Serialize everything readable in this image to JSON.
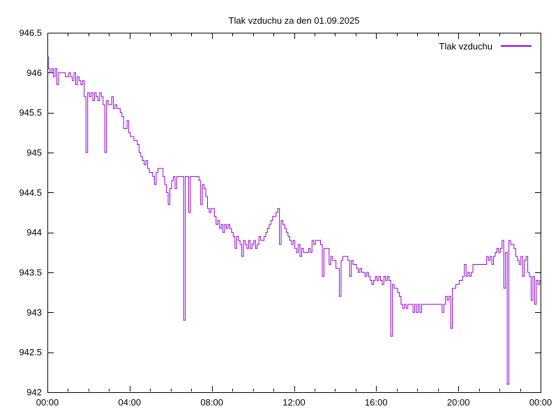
{
  "title": "Tlak vzduchu za den 01.09.2025",
  "legend": {
    "label": "Tlak vzduchu"
  },
  "colors": {
    "line": "#9400d3",
    "axis": "#000000",
    "background": "#ffffff",
    "text": "#000000"
  },
  "chart_data": {
    "type": "line",
    "title": "Tlak vzduchu za den 01.09.2025",
    "xlabel": "",
    "ylabel": "",
    "x_unit": "time of day (HH:MM)",
    "y_unit": "hPa",
    "xlim_hours": [
      0,
      24
    ],
    "ylim": [
      942,
      946.5
    ],
    "x_ticks": [
      "00:00",
      "04:00",
      "08:00",
      "12:00",
      "16:00",
      "20:00",
      "00:00"
    ],
    "x_tick_hours": [
      0,
      4,
      8,
      12,
      16,
      20,
      24
    ],
    "x_minor_tick_every_hours": 1,
    "y_ticks": [
      942,
      942.5,
      943,
      943.5,
      944,
      944.5,
      945,
      945.5,
      946,
      946.5
    ],
    "y_tick_labels": [
      "942",
      "942.5",
      "943",
      "943.5",
      "944",
      "944.5",
      "945",
      "945.5",
      "946",
      "946.5"
    ],
    "grid": false,
    "legend_entries": [
      "Tlak vzduchu"
    ],
    "legend_position": "top-right",
    "series": [
      {
        "name": "Tlak vzduchu",
        "color": "#9400d3",
        "start_time": "00:00",
        "sample_interval_minutes": 5,
        "values": [
          946.2,
          946.05,
          946.0,
          946.05,
          945.95,
          946.05,
          945.85,
          946.0,
          946.0,
          946.0,
          946.0,
          945.95,
          945.95,
          946.0,
          945.95,
          945.9,
          946.0,
          945.85,
          945.95,
          945.9,
          945.85,
          945.9,
          945.7,
          945.0,
          945.75,
          945.7,
          945.75,
          945.65,
          945.75,
          945.7,
          945.65,
          945.75,
          945.7,
          945.6,
          945.0,
          945.65,
          945.6,
          945.6,
          945.7,
          945.55,
          945.6,
          945.55,
          945.55,
          945.5,
          945.45,
          945.3,
          945.3,
          945.4,
          945.25,
          945.2,
          945.2,
          945.15,
          945.15,
          945.1,
          945.0,
          944.95,
          944.9,
          944.85,
          944.9,
          944.8,
          944.75,
          944.75,
          944.7,
          944.6,
          944.75,
          944.8,
          944.8,
          944.8,
          944.7,
          944.6,
          944.5,
          944.35,
          944.55,
          944.65,
          944.7,
          944.55,
          944.7,
          944.7,
          944.7,
          944.7,
          942.9,
          944.7,
          944.7,
          944.25,
          944.7,
          944.7,
          944.7,
          944.7,
          944.7,
          944.65,
          944.35,
          944.6,
          944.55,
          944.45,
          944.3,
          944.25,
          944.3,
          944.3,
          944.2,
          944.1,
          944.15,
          944.05,
          944.1,
          944.0,
          944.1,
          944.05,
          944.1,
          944.05,
          944.0,
          943.95,
          943.8,
          943.95,
          943.9,
          943.85,
          943.7,
          943.9,
          943.85,
          943.8,
          943.9,
          943.8,
          943.85,
          943.9,
          943.8,
          943.85,
          943.95,
          943.9,
          943.9,
          943.95,
          944.0,
          944.05,
          944.1,
          944.15,
          944.2,
          944.2,
          944.25,
          944.3,
          943.85,
          944.15,
          944.1,
          944.05,
          944.0,
          943.95,
          943.9,
          943.85,
          943.9,
          943.8,
          943.75,
          943.85,
          943.7,
          943.8,
          943.75,
          943.75,
          943.75,
          943.8,
          943.75,
          943.9,
          943.85,
          943.9,
          943.9,
          943.9,
          943.85,
          943.45,
          943.8,
          943.8,
          943.8,
          943.6,
          943.7,
          943.65,
          943.65,
          943.55,
          943.55,
          943.2,
          943.65,
          943.7,
          943.7,
          943.7,
          943.65,
          943.45,
          943.65,
          943.6,
          943.6,
          943.55,
          943.5,
          943.55,
          943.5,
          943.5,
          943.45,
          943.5,
          943.45,
          943.4,
          943.35,
          943.4,
          943.45,
          943.4,
          943.45,
          943.4,
          943.35,
          943.45,
          943.4,
          943.45,
          943.4,
          942.7,
          943.35,
          943.3,
          943.3,
          943.25,
          943.2,
          943.1,
          943.05,
          943.1,
          943.05,
          943.1,
          943.1,
          943.1,
          943.0,
          943.1,
          943.0,
          943.1,
          943.0,
          943.1,
          943.1,
          943.1,
          943.1,
          943.1,
          943.1,
          943.1,
          943.1,
          943.1,
          943.1,
          943.1,
          943.1,
          943.0,
          943.1,
          943.2,
          943.15,
          943.2,
          942.8,
          943.3,
          943.3,
          943.35,
          943.35,
          943.4,
          943.4,
          943.45,
          943.6,
          943.45,
          943.5,
          943.45,
          943.5,
          943.6,
          943.6,
          943.6,
          943.6,
          943.6,
          943.6,
          943.6,
          943.6,
          943.7,
          943.65,
          943.7,
          943.6,
          943.7,
          943.75,
          943.8,
          943.75,
          943.8,
          943.9,
          943.3,
          943.75,
          942.1,
          943.9,
          943.85,
          943.85,
          943.8,
          943.7,
          943.65,
          943.6,
          943.7,
          943.45,
          943.65,
          943.7,
          943.5,
          943.45,
          943.15,
          943.45,
          943.1,
          943.4,
          943.35,
          943.4
        ]
      }
    ]
  }
}
